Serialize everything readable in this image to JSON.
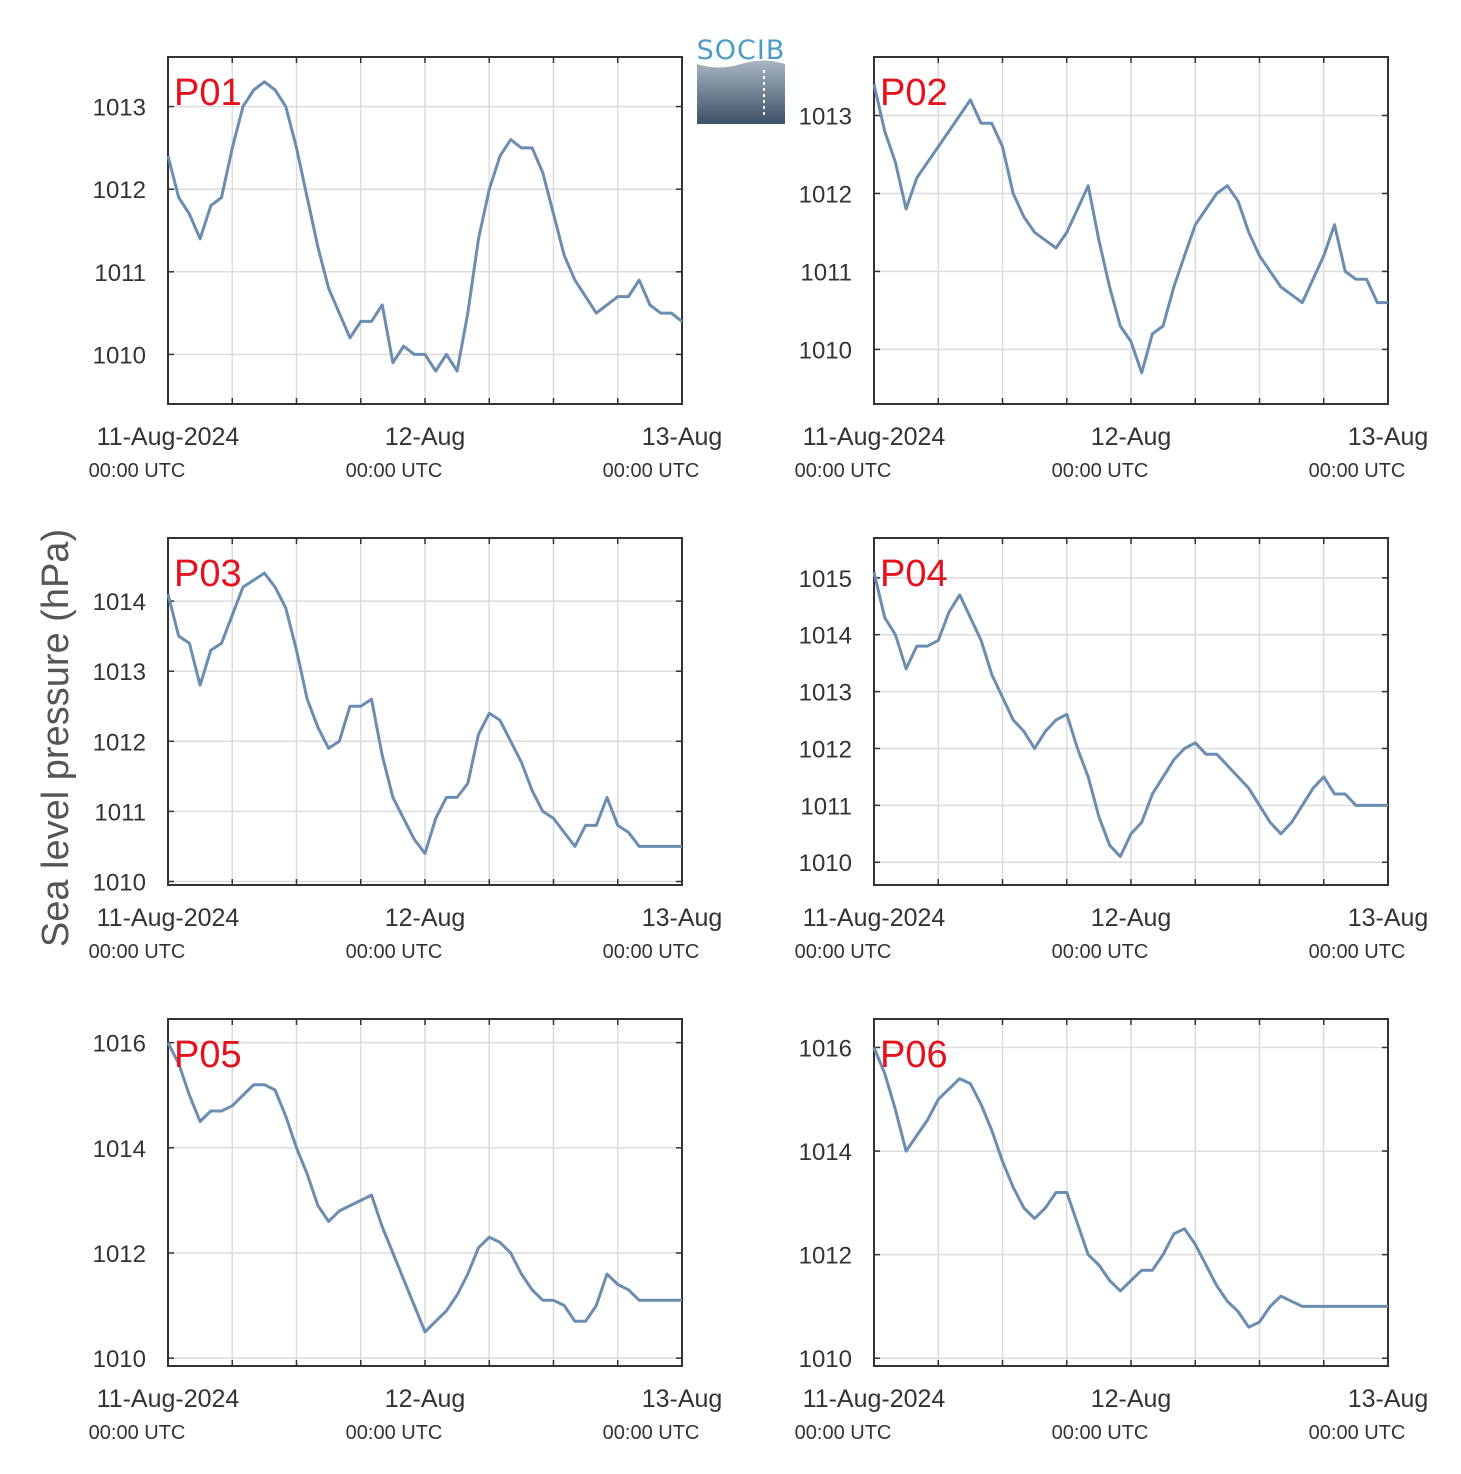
{
  "figure": {
    "ylabel": "Sea level pressure (hPa)",
    "logo_text": "SOCIB",
    "colors": {
      "line": "#6a8db0",
      "grid": "#dcdcdc",
      "axis": "#333333",
      "station_label": "#e4121e"
    },
    "x_tick_labels": [
      {
        "date": "11-Aug-2024",
        "time": "00:00 UTC"
      },
      {
        "date": "12-Aug",
        "time": "00:00 UTC"
      },
      {
        "date": "13-Aug",
        "time": "00:00 UTC"
      }
    ]
  },
  "chart_data": [
    {
      "type": "line",
      "station": "P01",
      "xlim": [
        "2024-08-11 00:00",
        "2024-08-13 00:00"
      ],
      "ylim": [
        1009.4,
        1013.6
      ],
      "yticks": [
        1010,
        1011,
        1012,
        1013
      ],
      "grid": true,
      "series": [
        {
          "x_hours": [
            0,
            1,
            2,
            3,
            4,
            5,
            6,
            7,
            8,
            9,
            10,
            11,
            12,
            13,
            14,
            15,
            16,
            17,
            18,
            19,
            20,
            21,
            22,
            23,
            24,
            25,
            26,
            27,
            28,
            29,
            30,
            31,
            32,
            33,
            34,
            35,
            36,
            37,
            38,
            39,
            40,
            41,
            42,
            43,
            44,
            45,
            46,
            47,
            48
          ],
          "values": [
            1012.4,
            1011.9,
            1011.7,
            1011.4,
            1011.8,
            1011.9,
            1012.5,
            1013.0,
            1013.2,
            1013.3,
            1013.2,
            1013.0,
            1012.5,
            1011.9,
            1011.3,
            1010.8,
            1010.5,
            1010.2,
            1010.4,
            1010.4,
            1010.6,
            1009.9,
            1010.1,
            1010.0,
            1010.0,
            1009.8,
            1010.0,
            1009.8,
            1010.5,
            1011.4,
            1012.0,
            1012.4,
            1012.6,
            1012.5,
            1012.5,
            1012.2,
            1011.7,
            1011.2,
            1010.9,
            1010.7,
            1010.5,
            1010.6,
            1010.7,
            1010.7,
            1010.9,
            1010.6,
            1010.5,
            1010.5,
            1010.4
          ]
        }
      ]
    },
    {
      "type": "line",
      "station": "P02",
      "xlim": [
        "2024-08-11 00:00",
        "2024-08-13 00:00"
      ],
      "ylim": [
        1009.3,
        1013.75
      ],
      "yticks": [
        1010,
        1011,
        1012,
        1013
      ],
      "grid": true,
      "series": [
        {
          "x_hours": [
            0,
            1,
            2,
            3,
            4,
            5,
            6,
            7,
            8,
            9,
            10,
            11,
            12,
            13,
            14,
            15,
            16,
            17,
            18,
            19,
            20,
            21,
            22,
            23,
            24,
            25,
            26,
            27,
            28,
            29,
            30,
            31,
            32,
            33,
            34,
            35,
            36,
            37,
            38,
            39,
            40,
            41,
            42,
            43,
            44,
            45,
            46,
            47,
            48
          ],
          "values": [
            1013.4,
            1012.8,
            1012.4,
            1011.8,
            1012.2,
            1012.4,
            1012.6,
            1012.8,
            1013.0,
            1013.2,
            1012.9,
            1012.9,
            1012.6,
            1012.0,
            1011.7,
            1011.5,
            1011.4,
            1011.3,
            1011.5,
            1011.8,
            1012.1,
            1011.4,
            1010.8,
            1010.3,
            1010.1,
            1009.7,
            1010.2,
            1010.3,
            1010.8,
            1011.2,
            1011.6,
            1011.8,
            1012.0,
            1012.1,
            1011.9,
            1011.5,
            1011.2,
            1011.0,
            1010.8,
            1010.7,
            1010.6,
            1010.9,
            1011.2,
            1011.6,
            1011.0,
            1010.9,
            1010.9,
            1010.6,
            1010.6
          ]
        }
      ]
    },
    {
      "type": "line",
      "station": "P03",
      "xlim": [
        "2024-08-11 00:00",
        "2024-08-13 00:00"
      ],
      "ylim": [
        1009.95,
        1014.9
      ],
      "yticks": [
        1010,
        1011,
        1012,
        1013,
        1014
      ],
      "grid": true,
      "series": [
        {
          "x_hours": [
            0,
            1,
            2,
            3,
            4,
            5,
            6,
            7,
            8,
            9,
            10,
            11,
            12,
            13,
            14,
            15,
            16,
            17,
            18,
            19,
            20,
            21,
            22,
            23,
            24,
            25,
            26,
            27,
            28,
            29,
            30,
            31,
            32,
            33,
            34,
            35,
            36,
            37,
            38,
            39,
            40,
            41,
            42,
            43,
            44,
            45,
            46,
            47,
            48
          ],
          "values": [
            1014.1,
            1013.5,
            1013.4,
            1012.8,
            1013.3,
            1013.4,
            1013.8,
            1014.2,
            1014.3,
            1014.4,
            1014.2,
            1013.9,
            1013.3,
            1012.6,
            1012.2,
            1011.9,
            1012.0,
            1012.5,
            1012.5,
            1012.6,
            1011.8,
            1011.2,
            1010.9,
            1010.6,
            1010.4,
            1010.9,
            1011.2,
            1011.2,
            1011.4,
            1012.1,
            1012.4,
            1012.3,
            1012.0,
            1011.7,
            1011.3,
            1011.0,
            1010.9,
            1010.7,
            1010.5,
            1010.8,
            1010.8,
            1011.2,
            1010.8,
            1010.7,
            1010.5,
            1010.5,
            1010.5,
            1010.5,
            1010.5
          ]
        }
      ]
    },
    {
      "type": "line",
      "station": "P04",
      "xlim": [
        "2024-08-11 00:00",
        "2024-08-13 00:00"
      ],
      "ylim": [
        1009.6,
        1015.7
      ],
      "yticks": [
        1010,
        1011,
        1012,
        1013,
        1014,
        1015
      ],
      "grid": true,
      "series": [
        {
          "x_hours": [
            0,
            1,
            2,
            3,
            4,
            5,
            6,
            7,
            8,
            9,
            10,
            11,
            12,
            13,
            14,
            15,
            16,
            17,
            18,
            19,
            20,
            21,
            22,
            23,
            24,
            25,
            26,
            27,
            28,
            29,
            30,
            31,
            32,
            33,
            34,
            35,
            36,
            37,
            38,
            39,
            40,
            41,
            42,
            43,
            44,
            45,
            46,
            47,
            48
          ],
          "values": [
            1015.1,
            1014.3,
            1014.0,
            1013.4,
            1013.8,
            1013.8,
            1013.9,
            1014.4,
            1014.7,
            1014.3,
            1013.9,
            1013.3,
            1012.9,
            1012.5,
            1012.3,
            1012.0,
            1012.3,
            1012.5,
            1012.6,
            1012.0,
            1011.5,
            1010.8,
            1010.3,
            1010.1,
            1010.5,
            1010.7,
            1011.2,
            1011.5,
            1011.8,
            1012.0,
            1012.1,
            1011.9,
            1011.9,
            1011.7,
            1011.5,
            1011.3,
            1011.0,
            1010.7,
            1010.5,
            1010.7,
            1011.0,
            1011.3,
            1011.5,
            1011.2,
            1011.2,
            1011.0,
            1011.0,
            1011.0,
            1011.0
          ]
        }
      ]
    },
    {
      "type": "line",
      "station": "P05",
      "xlim": [
        "2024-08-11 00:00",
        "2024-08-13 00:00"
      ],
      "ylim": [
        1009.85,
        1016.45
      ],
      "yticks": [
        1010,
        1012,
        1014,
        1016
      ],
      "grid": true,
      "series": [
        {
          "x_hours": [
            0,
            1,
            2,
            3,
            4,
            5,
            6,
            7,
            8,
            9,
            10,
            11,
            12,
            13,
            14,
            15,
            16,
            17,
            18,
            19,
            20,
            21,
            22,
            23,
            24,
            25,
            26,
            27,
            28,
            29,
            30,
            31,
            32,
            33,
            34,
            35,
            36,
            37,
            38,
            39,
            40,
            41,
            42,
            43,
            44,
            45,
            46,
            47,
            48
          ],
          "values": [
            1016.0,
            1015.6,
            1015.0,
            1014.5,
            1014.7,
            1014.7,
            1014.8,
            1015.0,
            1015.2,
            1015.2,
            1015.1,
            1014.6,
            1014.0,
            1013.5,
            1012.9,
            1012.6,
            1012.8,
            1012.9,
            1013.0,
            1013.1,
            1012.5,
            1012.0,
            1011.5,
            1011.0,
            1010.5,
            1010.7,
            1010.9,
            1011.2,
            1011.6,
            1012.1,
            1012.3,
            1012.2,
            1012.0,
            1011.6,
            1011.3,
            1011.1,
            1011.1,
            1011.0,
            1010.7,
            1010.7,
            1011.0,
            1011.6,
            1011.4,
            1011.3,
            1011.1,
            1011.1,
            1011.1,
            1011.1,
            1011.1
          ]
        }
      ]
    },
    {
      "type": "line",
      "station": "P06",
      "xlim": [
        "2024-08-11 00:00",
        "2024-08-13 00:00"
      ],
      "ylim": [
        1009.85,
        1016.55
      ],
      "yticks": [
        1010,
        1012,
        1014,
        1016
      ],
      "grid": true,
      "series": [
        {
          "x_hours": [
            0,
            1,
            2,
            3,
            4,
            5,
            6,
            7,
            8,
            9,
            10,
            11,
            12,
            13,
            14,
            15,
            16,
            17,
            18,
            19,
            20,
            21,
            22,
            23,
            24,
            25,
            26,
            27,
            28,
            29,
            30,
            31,
            32,
            33,
            34,
            35,
            36,
            37,
            38,
            39,
            40,
            41,
            42,
            43,
            44,
            45,
            46,
            47,
            48
          ],
          "values": [
            1016.0,
            1015.5,
            1014.8,
            1014.0,
            1014.3,
            1014.6,
            1015.0,
            1015.2,
            1015.4,
            1015.3,
            1014.9,
            1014.4,
            1013.8,
            1013.3,
            1012.9,
            1012.7,
            1012.9,
            1013.2,
            1013.2,
            1012.6,
            1012.0,
            1011.8,
            1011.5,
            1011.3,
            1011.5,
            1011.7,
            1011.7,
            1012.0,
            1012.4,
            1012.5,
            1012.2,
            1011.8,
            1011.4,
            1011.1,
            1010.9,
            1010.6,
            1010.7,
            1011.0,
            1011.2,
            1011.1,
            1011.0,
            1011.0,
            1011.0,
            1011.0,
            1011.0,
            1011.0,
            1011.0,
            1011.0,
            1011.0
          ]
        }
      ]
    }
  ]
}
